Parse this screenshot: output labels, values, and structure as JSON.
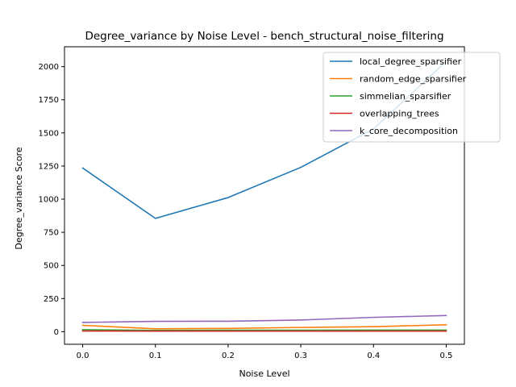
{
  "chart_data": {
    "type": "line",
    "title": "Degree_variance by Noise Level - bench_structural_noise_filtering",
    "xlabel": "Noise Level",
    "ylabel": "Degree_variance Score",
    "x": [
      0.0,
      0.1,
      0.2,
      0.3,
      0.4,
      0.5
    ],
    "x_ticks": [
      "0.0",
      "0.1",
      "0.2",
      "0.3",
      "0.4",
      "0.5"
    ],
    "y_ticks": [
      "0",
      "250",
      "500",
      "750",
      "1000",
      "1250",
      "1500",
      "1750",
      "2000"
    ],
    "xlim": [
      -0.025,
      0.525
    ],
    "ylim": [
      -95,
      2150
    ],
    "grid": false,
    "legend_position": "top-right",
    "series": [
      {
        "name": "local_degree_sparsifier",
        "color": "#1f77b4",
        "values": [
          1235,
          855,
          1012,
          1240,
          1530,
          2040
        ]
      },
      {
        "name": "random_edge_sparsifier",
        "color": "#ff7f0e",
        "values": [
          48,
          22,
          25,
          32,
          38,
          52
        ]
      },
      {
        "name": "simmelian_sparsifier",
        "color": "#2ca02c",
        "values": [
          15,
          10,
          11,
          11,
          12,
          12
        ]
      },
      {
        "name": "overlapping_trees",
        "color": "#d62728",
        "values": [
          5,
          4,
          4,
          4,
          4,
          4
        ]
      },
      {
        "name": "k_core_decomposition",
        "color": "#9467bd",
        "values": [
          70,
          78,
          79,
          88,
          108,
          122
        ]
      }
    ]
  }
}
